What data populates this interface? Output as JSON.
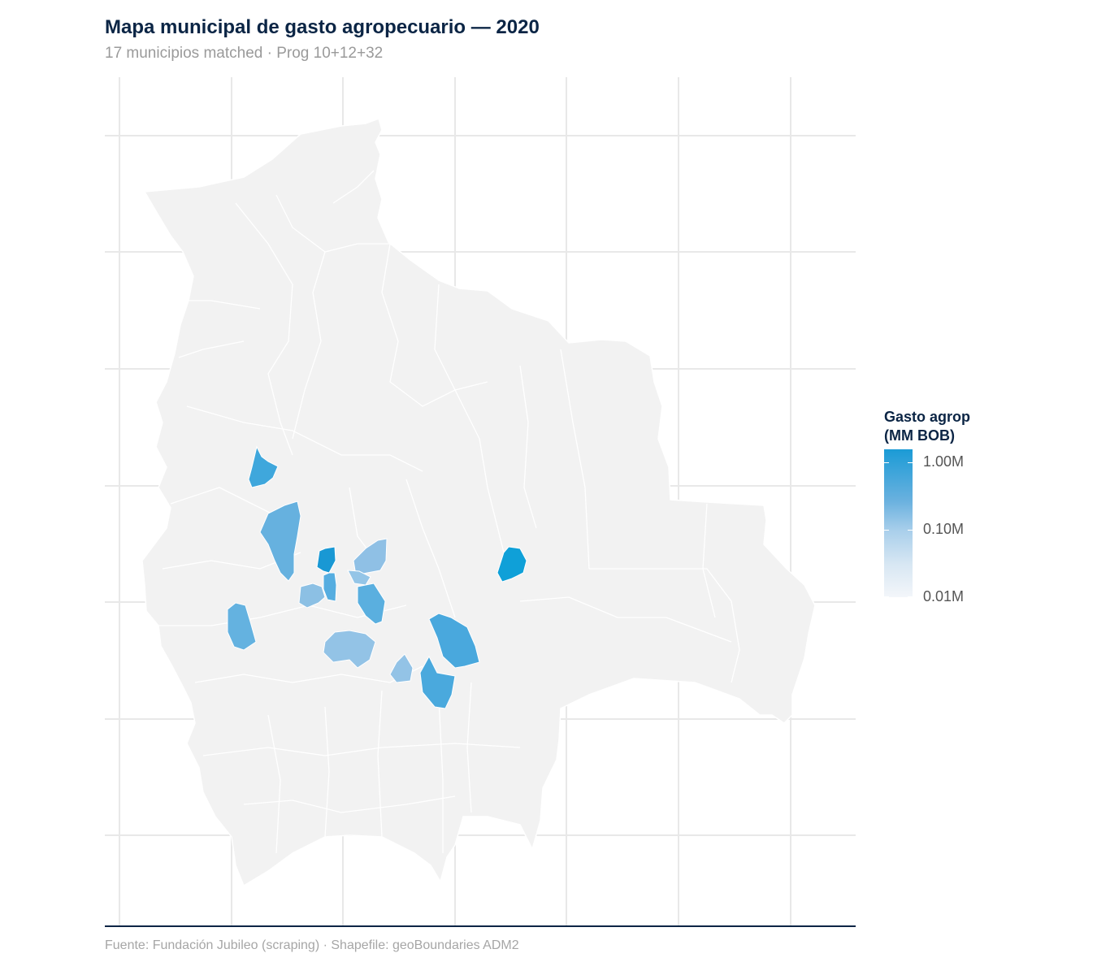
{
  "title": "Mapa municipal de gasto agropecuario — 2020",
  "subtitle": "17 municipios matched · Prog 10+12+32",
  "caption": "Fuente: Fundación Jubileo (scraping) · Shapefile: geoBoundaries ADM2",
  "legend": {
    "title_line1": "Gasto agrop",
    "title_line2": "(MM BOB)",
    "labels": [
      "1.00M",
      "0.10M",
      "0.01M"
    ]
  },
  "colors": {
    "background_region": "#f2f2f2",
    "grid": "#e8e8e8",
    "high": "#1b9bd6",
    "mid": "#6ab1df",
    "low": "#a9cfeb",
    "axis_line": "#0b2545"
  }
}
